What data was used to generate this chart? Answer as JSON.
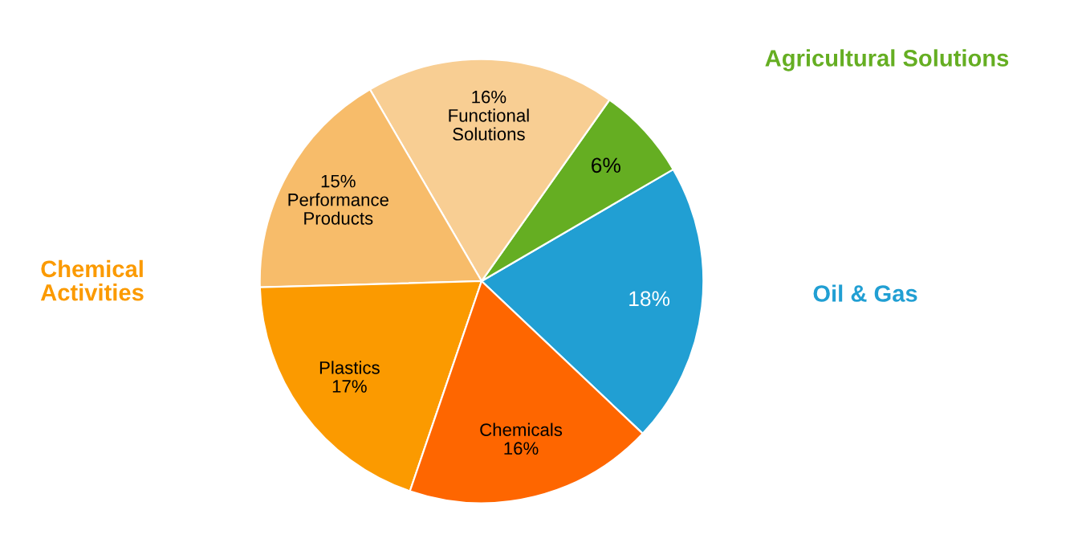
{
  "chart_data": {
    "type": "pie",
    "categories": [
      null,
      null,
      "Functional Solutions",
      "Performance Products",
      "Plastics",
      "Chemicals"
    ],
    "values": [
      18,
      6,
      16,
      15,
      17,
      16
    ],
    "value_labels": [
      "18%",
      "6%",
      "16%",
      "15%",
      "17%",
      "16%"
    ],
    "colors": [
      "#219fd3",
      "#65ae22",
      "#f8ce93",
      "#f7bc6a",
      "#fb9a00",
      "#fe6600"
    ],
    "annotations": [
      "Oil & Gas",
      "Agricultural Solutions",
      "Chemical Activities"
    ]
  }
}
